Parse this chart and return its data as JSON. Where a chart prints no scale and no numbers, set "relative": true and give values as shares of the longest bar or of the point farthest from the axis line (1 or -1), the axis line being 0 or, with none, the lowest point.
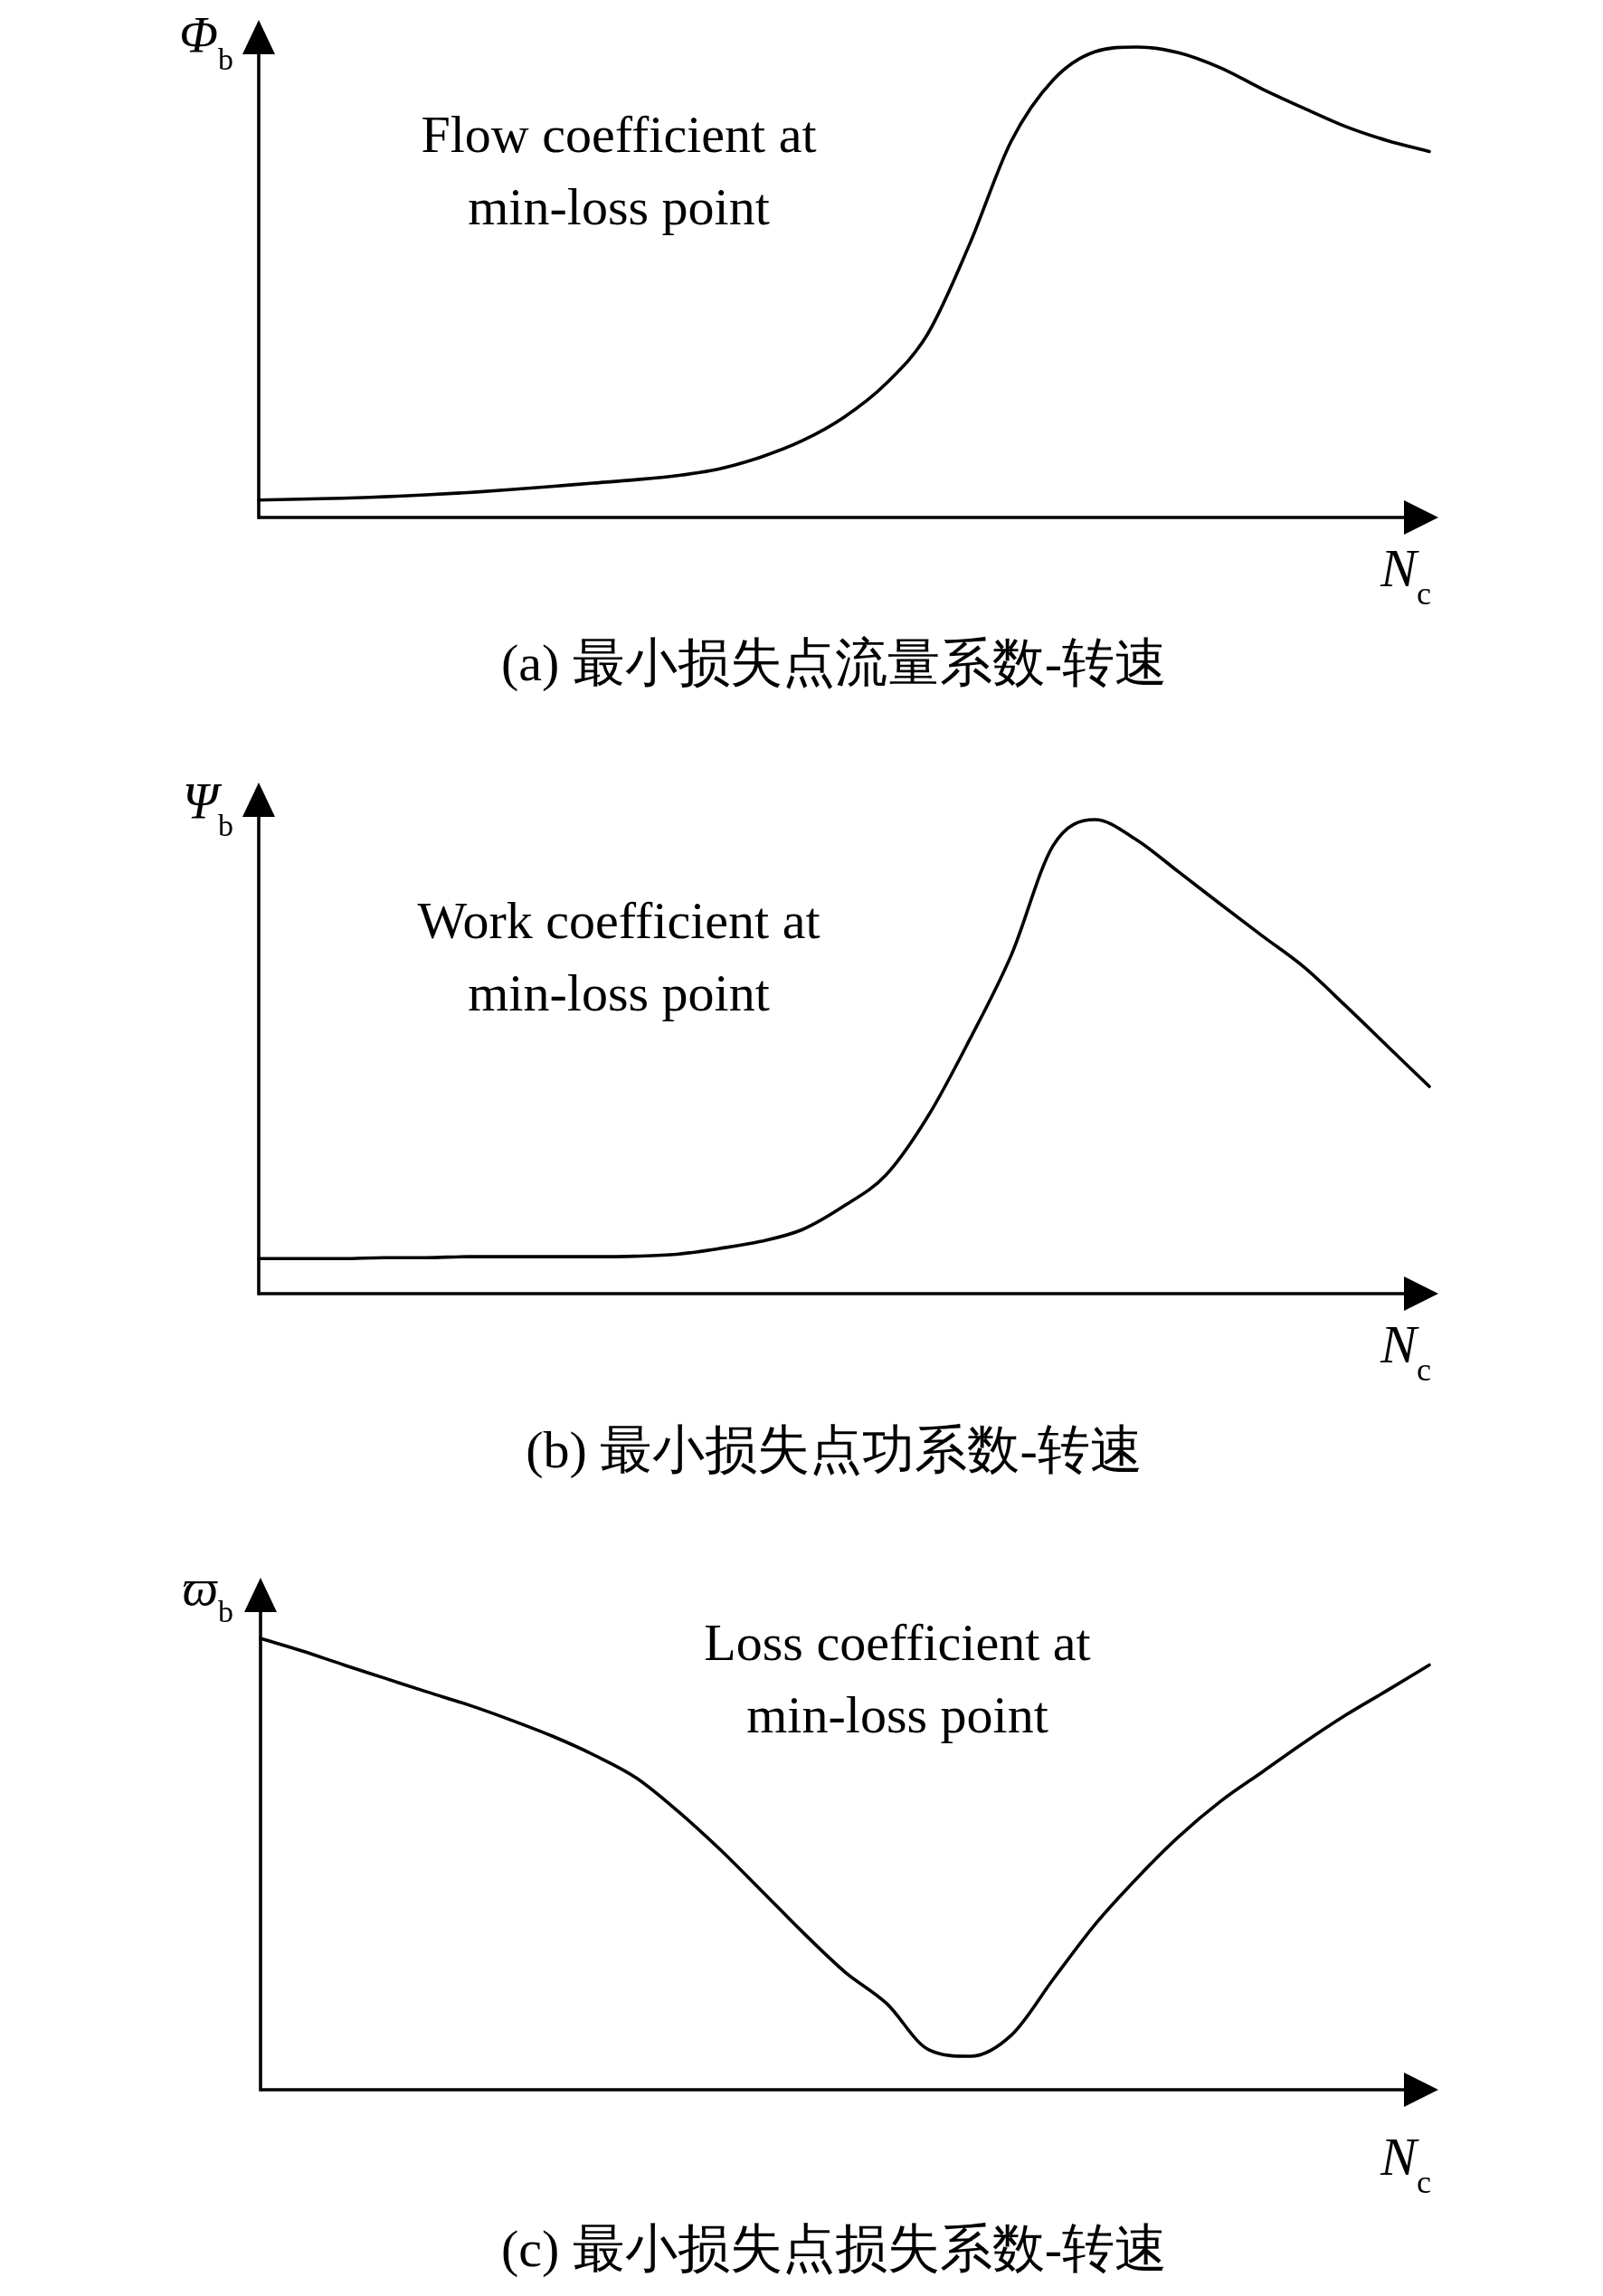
{
  "chart_data": [
    {
      "type": "line",
      "title": "(a) 最小损失点流量系数-转速",
      "xlabel": "N$_{c}$",
      "ylabel": "Φ$_{b}$",
      "annotations": [
        "Flow coefficient at min-loss point"
      ],
      "relative": true,
      "color": "#000000",
      "categories": [
        null,
        null,
        null,
        null,
        null,
        null,
        null,
        null,
        null,
        null,
        null,
        null,
        null,
        null,
        null,
        null,
        null,
        null,
        null,
        null,
        null,
        null,
        null,
        null,
        null,
        null,
        null,
        null,
        null
      ],
      "values": [
        0.037,
        0.039,
        0.041,
        0.044,
        0.048,
        0.053,
        0.059,
        0.066,
        0.073,
        0.08,
        0.089,
        0.103,
        0.128,
        0.163,
        0.213,
        0.284,
        0.39,
        0.58,
        0.8,
        0.93,
        0.99,
        1.0,
        0.988,
        0.956,
        0.911,
        0.87,
        0.831,
        0.801,
        0.778
      ]
    },
    {
      "type": "line",
      "title": "(b) 最小损失点功系数-转速",
      "xlabel": "N$_{c}$",
      "ylabel": "Ψ$_{b}$",
      "annotations": [
        "Work coefficient at min-loss point"
      ],
      "relative": true,
      "color": "#000000",
      "categories": [
        null,
        null,
        null,
        null,
        null,
        null,
        null,
        null,
        null,
        null,
        null,
        null,
        null,
        null,
        null,
        null,
        null,
        null,
        null,
        null,
        null,
        null,
        null,
        null,
        null,
        null,
        null,
        null,
        null
      ],
      "values": [
        0.074,
        0.074,
        0.074,
        0.076,
        0.076,
        0.078,
        0.078,
        0.078,
        0.078,
        0.079,
        0.083,
        0.095,
        0.11,
        0.135,
        0.185,
        0.25,
        0.373,
        0.535,
        0.714,
        0.945,
        1.0,
        0.957,
        0.89,
        0.822,
        0.755,
        0.689,
        0.607,
        0.522,
        0.437
      ]
    },
    {
      "type": "line",
      "title": "(c) 最小损失点损失系数-转速",
      "xlabel": "N$_{c}$",
      "ylabel": "ϖ$_{b}$",
      "annotations": [
        "Loss coefficient at min-loss point"
      ],
      "relative": true,
      "color": "#000000",
      "categories": [
        null,
        null,
        null,
        null,
        null,
        null,
        null,
        null,
        null,
        null,
        null,
        null,
        null,
        null,
        null,
        null,
        null,
        null,
        null,
        null,
        null,
        null,
        null,
        null,
        null,
        null,
        null,
        null,
        null
      ],
      "values": [
        1.0,
        0.972,
        0.941,
        0.911,
        0.881,
        0.852,
        0.819,
        0.783,
        0.741,
        0.691,
        0.617,
        0.533,
        0.441,
        0.348,
        0.261,
        0.191,
        0.089,
        0.074,
        0.122,
        0.246,
        0.367,
        0.469,
        0.561,
        0.639,
        0.704,
        0.769,
        0.83,
        0.885,
        0.941
      ]
    }
  ]
}
